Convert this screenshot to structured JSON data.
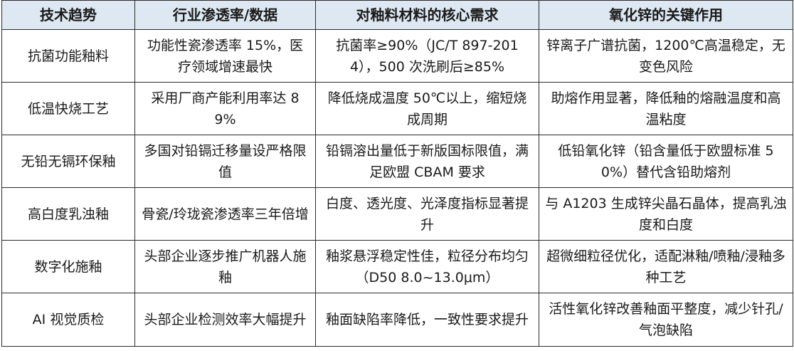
{
  "table": {
    "headers": [
      "技术趋势",
      "行业渗透率/数据",
      "对釉料材料的核心需求",
      "氧化锌的关键作用"
    ],
    "rows": [
      [
        "抗菌功能釉料",
        "功能性瓷渗透率 15%，医疗领域增速最快",
        "抗菌率≥90%（JC/T 897-2014），500 次洗刷后≥85%",
        "锌离子广谱抗菌，1200℃高温稳定，无变色风险"
      ],
      [
        "低温快烧工艺",
        "采用厂商产能利用率达 89%",
        "降低烧成温度 50℃以上，缩短烧成周期",
        "助熔作用显著，降低釉的熔融温度和高温粘度"
      ],
      [
        "无铅无镉环保釉",
        "多国对铅镉迁移量设严格限值",
        "铅镉溶出量低于新版国标限值，满足欧盟 CBAM 要求",
        "低铅氧化锌（铅含量低于欧盟标准 50%）替代含铅助熔剂"
      ],
      [
        "高白度乳浊釉",
        "骨瓷/玲珑瓷渗透率三年倍增",
        "白度、透光度、光泽度指标显著提升",
        "与 A1203 生成锌尖晶石晶体，提高乳浊度和白度"
      ],
      [
        "数字化施釉",
        "头部企业逐步推广机器人施釉",
        "釉浆悬浮稳定性佳，粒径分布均匀（D50 8.0~13.0μm）",
        "超微细粒径优化，适配淋釉/喷釉/浸釉多种工艺"
      ],
      [
        "AI 视觉质检",
        "头部企业检测效率大幅提升",
        "釉面缺陷率降低，一致性要求提升",
        "活性氧化锌改善釉面平整度，减少针孔/气泡缺陷"
      ]
    ]
  }
}
